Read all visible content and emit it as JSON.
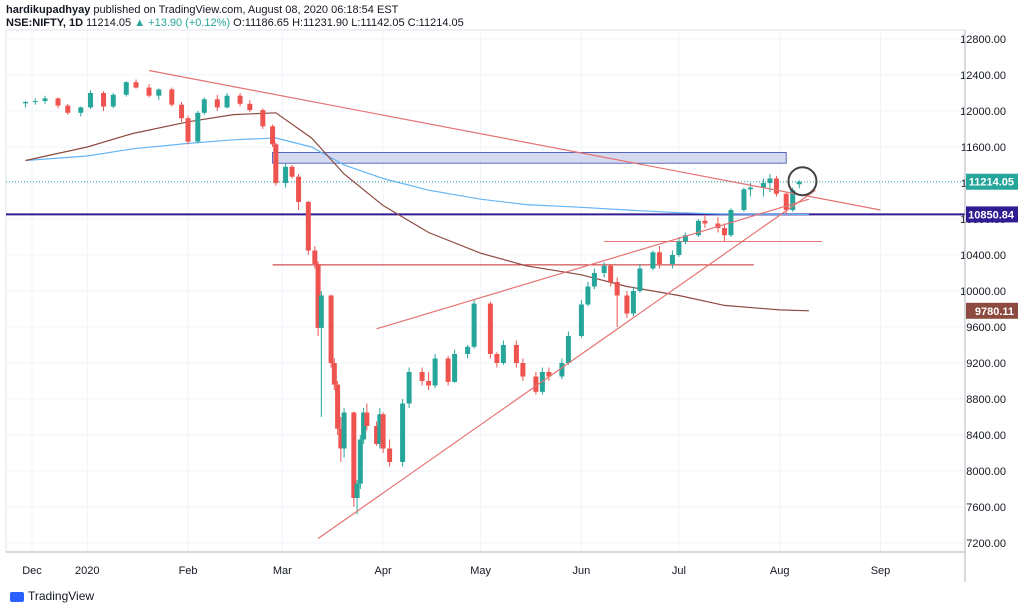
{
  "header": {
    "publisher": "hardikupadhyay",
    "published_text": " published on TradingView.com, August 08, 2020 06:18:54 EST",
    "symbol": "NSE:NIFTY, 1D",
    "last": "11214.05",
    "change": "▲ +13.90 (+0.12%)",
    "ohlc": "O:11186.65 H:11231.90 L:11142.05 C:11214.05"
  },
  "footer": {
    "brand": "TradingView"
  },
  "colors": {
    "up": "#26a69a",
    "down": "#ef5350",
    "ma_fast": "#64b5f6",
    "ma_slow": "#8d4a3f",
    "trend": "#e57373",
    "support": "#311b92",
    "zone": "#c5cae9"
  },
  "chart_data": {
    "type": "candlestick",
    "ylim": [
      7100,
      12900
    ],
    "y_ticks": [
      "7200.00",
      "7600.00",
      "8000.00",
      "8400.00",
      "8800.00",
      "9200.00",
      "9600.00",
      "10000.00",
      "10400.00",
      "10800.00",
      "11200.00",
      "11600.00",
      "12000.00",
      "12400.00",
      "12800.00"
    ],
    "x_ticks": [
      "Dec",
      "2020",
      "Feb",
      "Mar",
      "Apr",
      "May",
      "Jun",
      "Jul",
      "Aug",
      "Sep"
    ],
    "x_tick_dates": [
      "2019-12-15",
      "2020-01-01",
      "2020-02-01",
      "2020-03-01",
      "2020-04-01",
      "2020-05-01",
      "2020-06-01",
      "2020-07-01",
      "2020-08-01",
      "2020-09-01"
    ],
    "price_labels": [
      {
        "text": "11214.05",
        "value": 11214.05,
        "color": "#26a69a"
      },
      {
        "text": "10850.84",
        "value": 10850.84,
        "color": "#311b92"
      },
      {
        "text": "9780.11",
        "value": 9780.11,
        "color": "#8d4a3f"
      }
    ],
    "candles": [
      [
        "2019-12-13",
        12086,
        12110,
        12040,
        12100
      ],
      [
        "2019-12-16",
        12100,
        12140,
        12070,
        12110
      ],
      [
        "2019-12-19",
        12110,
        12170,
        12080,
        12140
      ],
      [
        "2019-12-23",
        12140,
        12150,
        12030,
        12060
      ],
      [
        "2019-12-26",
        12060,
        12080,
        11960,
        11980
      ],
      [
        "2019-12-30",
        11980,
        12050,
        11940,
        12040
      ],
      [
        "2020-01-02",
        12040,
        12230,
        12020,
        12200
      ],
      [
        "2020-01-06",
        12200,
        12220,
        12000,
        12050
      ],
      [
        "2020-01-09",
        12050,
        12200,
        12030,
        12180
      ],
      [
        "2020-01-13",
        12180,
        12330,
        12160,
        12320
      ],
      [
        "2020-01-16",
        12320,
        12350,
        12250,
        12260
      ],
      [
        "2020-01-20",
        12260,
        12300,
        12150,
        12170
      ],
      [
        "2020-01-23",
        12170,
        12250,
        12120,
        12240
      ],
      [
        "2020-01-27",
        12240,
        12260,
        12050,
        12070
      ],
      [
        "2020-01-30",
        12070,
        12100,
        11880,
        11920
      ],
      [
        "2020-02-01",
        11920,
        11950,
        11630,
        11660
      ],
      [
        "2020-02-04",
        11660,
        12000,
        11640,
        11980
      ],
      [
        "2020-02-06",
        11980,
        12150,
        11960,
        12130
      ],
      [
        "2020-02-10",
        12130,
        12180,
        12000,
        12040
      ],
      [
        "2020-02-13",
        12040,
        12200,
        12030,
        12170
      ],
      [
        "2020-02-17",
        12170,
        12200,
        12050,
        12080
      ],
      [
        "2020-02-20",
        12080,
        12120,
        11990,
        12010
      ],
      [
        "2020-02-24",
        12010,
        12030,
        11800,
        11830
      ],
      [
        "2020-02-27",
        11830,
        11850,
        11600,
        11630
      ],
      [
        "2020-02-28",
        11630,
        11650,
        11170,
        11200
      ],
      [
        "2020-03-02",
        11200,
        11420,
        11150,
        11380
      ],
      [
        "2020-03-04",
        11380,
        11400,
        11250,
        11270
      ],
      [
        "2020-03-06",
        11270,
        11300,
        10900,
        10990
      ],
      [
        "2020-03-09",
        10990,
        11000,
        10400,
        10450
      ],
      [
        "2020-03-11",
        10450,
        10500,
        10250,
        10300
      ],
      [
        "2020-03-12",
        10300,
        10330,
        9500,
        9590
      ],
      [
        "2020-03-13",
        9590,
        10000,
        8600,
        9950
      ],
      [
        "2020-03-16",
        9950,
        9960,
        9150,
        9200
      ],
      [
        "2020-03-17",
        9200,
        9250,
        8900,
        8960
      ],
      [
        "2020-03-18",
        8960,
        9000,
        8400,
        8470
      ],
      [
        "2020-03-19",
        8470,
        8600,
        8100,
        8250
      ],
      [
        "2020-03-20",
        8250,
        8700,
        8150,
        8650
      ],
      [
        "2020-03-23",
        8650,
        8660,
        7600,
        7700
      ],
      [
        "2020-03-24",
        7700,
        7900,
        7520,
        7860
      ],
      [
        "2020-03-25",
        7860,
        8400,
        7800,
        8350
      ],
      [
        "2020-03-26",
        8350,
        8700,
        8300,
        8650
      ],
      [
        "2020-03-27",
        8650,
        8750,
        8450,
        8500
      ],
      [
        "2020-03-30",
        8500,
        8550,
        8280,
        8300
      ],
      [
        "2020-03-31",
        8300,
        8700,
        8250,
        8630
      ],
      [
        "2020-04-01",
        8630,
        8650,
        8200,
        8250
      ],
      [
        "2020-04-03",
        8250,
        8350,
        8050,
        8100
      ],
      [
        "2020-04-07",
        8100,
        8800,
        8050,
        8750
      ],
      [
        "2020-04-09",
        8750,
        9150,
        8700,
        9100
      ],
      [
        "2020-04-13",
        9100,
        9150,
        8950,
        9000
      ],
      [
        "2020-04-15",
        9000,
        9100,
        8900,
        8950
      ],
      [
        "2020-04-17",
        8950,
        9300,
        8920,
        9250
      ],
      [
        "2020-04-21",
        9250,
        9280,
        8950,
        8990
      ],
      [
        "2020-04-23",
        8990,
        9350,
        8980,
        9300
      ],
      [
        "2020-04-27",
        9300,
        9400,
        9250,
        9380
      ],
      [
        "2020-04-29",
        9380,
        9900,
        9360,
        9860
      ],
      [
        "2020-05-04",
        9860,
        9880,
        9250,
        9300
      ],
      [
        "2020-05-06",
        9300,
        9320,
        9150,
        9200
      ],
      [
        "2020-05-08",
        9200,
        9450,
        9180,
        9400
      ],
      [
        "2020-05-12",
        9400,
        9450,
        9150,
        9200
      ],
      [
        "2020-05-14",
        9200,
        9250,
        9000,
        9050
      ],
      [
        "2020-05-18",
        9050,
        9100,
        8850,
        8880
      ],
      [
        "2020-05-20",
        8880,
        9150,
        8850,
        9100
      ],
      [
        "2020-05-22",
        9100,
        9150,
        9000,
        9050
      ],
      [
        "2020-05-26",
        9050,
        9250,
        9020,
        9200
      ],
      [
        "2020-05-28",
        9200,
        9550,
        9180,
        9500
      ],
      [
        "2020-06-01",
        9500,
        9900,
        9480,
        9850
      ],
      [
        "2020-06-03",
        9850,
        10100,
        9830,
        10050
      ],
      [
        "2020-06-05",
        10050,
        10250,
        10020,
        10200
      ],
      [
        "2020-06-08",
        10200,
        10320,
        10150,
        10280
      ],
      [
        "2020-06-10",
        10280,
        10300,
        10050,
        10100
      ],
      [
        "2020-06-12",
        10100,
        10150,
        9600,
        9950
      ],
      [
        "2020-06-15",
        9950,
        10000,
        9700,
        9750
      ],
      [
        "2020-06-17",
        9750,
        10050,
        9720,
        10000
      ],
      [
        "2020-06-19",
        10000,
        10300,
        9980,
        10250
      ],
      [
        "2020-06-23",
        10250,
        10450,
        10230,
        10430
      ],
      [
        "2020-06-25",
        10430,
        10500,
        10250,
        10300
      ],
      [
        "2020-06-29",
        10300,
        10450,
        10250,
        10400
      ],
      [
        "2020-07-01",
        10400,
        10600,
        10380,
        10550
      ],
      [
        "2020-07-03",
        10550,
        10650,
        10520,
        10620
      ],
      [
        "2020-07-07",
        10620,
        10800,
        10600,
        10780
      ],
      [
        "2020-07-09",
        10780,
        10850,
        10700,
        10750
      ],
      [
        "2020-07-13",
        10750,
        10820,
        10650,
        10700
      ],
      [
        "2020-07-15",
        10700,
        10750,
        10550,
        10620
      ],
      [
        "2020-07-17",
        10620,
        10920,
        10600,
        10900
      ],
      [
        "2020-07-21",
        10900,
        11150,
        10880,
        11130
      ],
      [
        "2020-07-23",
        11130,
        11200,
        11050,
        11150
      ],
      [
        "2020-07-27",
        11150,
        11250,
        11050,
        11200
      ],
      [
        "2020-07-29",
        11200,
        11300,
        11100,
        11250
      ],
      [
        "2020-07-31",
        11250,
        11280,
        11050,
        11080
      ],
      [
        "2020-08-03",
        11080,
        11100,
        10850,
        10900
      ],
      [
        "2020-08-05",
        10900,
        11150,
        10880,
        11120
      ],
      [
        "2020-08-07",
        11186.65,
        11231.9,
        11142.05,
        11214.05
      ]
    ],
    "ma_fast": [
      [
        "2019-12-13",
        11450
      ],
      [
        "2020-01-01",
        11500
      ],
      [
        "2020-01-15",
        11580
      ],
      [
        "2020-02-01",
        11640
      ],
      [
        "2020-02-15",
        11680
      ],
      [
        "2020-02-28",
        11700
      ],
      [
        "2020-03-10",
        11600
      ],
      [
        "2020-03-20",
        11400
      ],
      [
        "2020-04-01",
        11250
      ],
      [
        "2020-04-15",
        11120
      ],
      [
        "2020-05-01",
        11020
      ],
      [
        "2020-05-15",
        10960
      ],
      [
        "2020-06-01",
        10930
      ],
      [
        "2020-06-15",
        10900
      ],
      [
        "2020-07-01",
        10870
      ],
      [
        "2020-07-15",
        10855
      ],
      [
        "2020-08-01",
        10852
      ],
      [
        "2020-08-10",
        10850.84
      ]
    ],
    "ma_slow": [
      [
        "2019-12-13",
        11450
      ],
      [
        "2020-01-01",
        11600
      ],
      [
        "2020-01-15",
        11750
      ],
      [
        "2020-02-01",
        11880
      ],
      [
        "2020-02-15",
        11960
      ],
      [
        "2020-02-28",
        11980
      ],
      [
        "2020-03-10",
        11700
      ],
      [
        "2020-03-20",
        11300
      ],
      [
        "2020-04-01",
        10950
      ],
      [
        "2020-04-15",
        10650
      ],
      [
        "2020-05-01",
        10420
      ],
      [
        "2020-05-15",
        10280
      ],
      [
        "2020-06-01",
        10180
      ],
      [
        "2020-06-15",
        10050
      ],
      [
        "2020-07-01",
        9950
      ],
      [
        "2020-07-15",
        9840
      ],
      [
        "2020-08-01",
        9790
      ],
      [
        "2020-08-10",
        9780.11
      ]
    ],
    "trendlines": [
      {
        "from": [
          "2020-01-20",
          12450
        ],
        "to": [
          "2020-09-01",
          10900
        ],
        "color": "#e57373"
      },
      {
        "from": [
          "2020-03-12",
          7250
        ],
        "to": [
          "2020-08-12",
          11120
        ],
        "color": "#e57373"
      },
      {
        "from": [
          "2020-03-30",
          9580
        ],
        "to": [
          "2020-08-10",
          11020
        ],
        "color": "#e57373"
      }
    ],
    "hlines": [
      {
        "from": "2020-02-27",
        "to": "2020-07-24",
        "value": 10290,
        "color": "#c62828"
      },
      {
        "from": "2020-06-08",
        "to": "2020-08-14",
        "value": 10550,
        "color": "#e57373"
      },
      {
        "from": "2020-07-10",
        "to": "2020-08-14",
        "value": 10850.84,
        "color": "#311b92",
        "full": true
      }
    ],
    "zone": {
      "from": "2020-02-27",
      "to": "2020-08-03",
      "low": 11420,
      "high": 11540
    },
    "marker": {
      "date": "2020-08-08",
      "value": 11220
    }
  }
}
